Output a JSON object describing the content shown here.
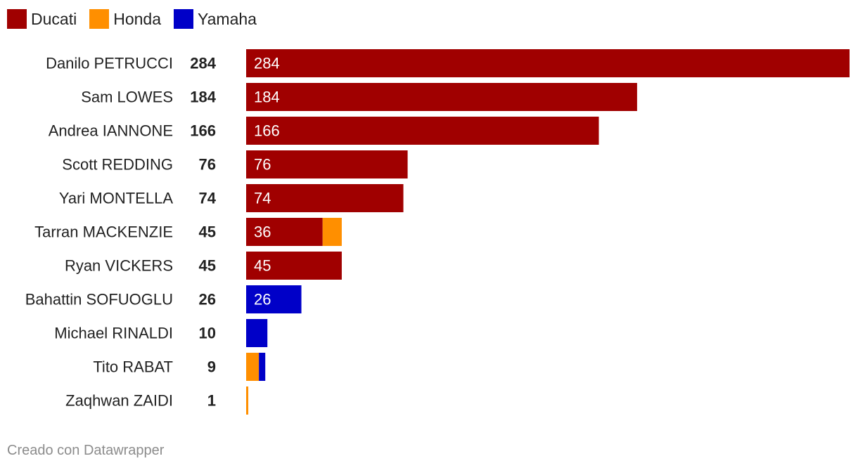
{
  "legend": [
    {
      "name": "Ducati",
      "color": "#a00000"
    },
    {
      "name": "Honda",
      "color": "#ff8f00"
    },
    {
      "name": "Yamaha",
      "color": "#0000c8"
    }
  ],
  "chart_data": {
    "type": "bar",
    "orientation": "horizontal",
    "stacked": true,
    "categories": [
      "Danilo PETRUCCI",
      "Sam LOWES",
      "Andrea IANNONE",
      "Scott REDDING",
      "Yari MONTELLA",
      "Tarran MACKENZIE",
      "Ryan VICKERS",
      "Bahattin SOFUOGLU",
      "Michael RINALDI",
      "Tito RABAT",
      "Zaqhwan ZAIDI"
    ],
    "totals": [
      284,
      184,
      166,
      76,
      74,
      45,
      45,
      26,
      10,
      9,
      1
    ],
    "series": [
      {
        "name": "Ducati",
        "color": "#a00000",
        "values": [
          284,
          184,
          166,
          76,
          74,
          36,
          45,
          0,
          0,
          0,
          0
        ]
      },
      {
        "name": "Honda",
        "color": "#ff8f00",
        "values": [
          0,
          0,
          0,
          0,
          0,
          9,
          0,
          0,
          0,
          6,
          1
        ]
      },
      {
        "name": "Yamaha",
        "color": "#0000c8",
        "values": [
          0,
          0,
          0,
          0,
          0,
          0,
          0,
          26,
          10,
          3,
          0
        ]
      }
    ],
    "xlim": [
      0,
      284
    ],
    "legend_position": "top-left",
    "grid": false
  },
  "footer": "Creado con Datawrapper"
}
